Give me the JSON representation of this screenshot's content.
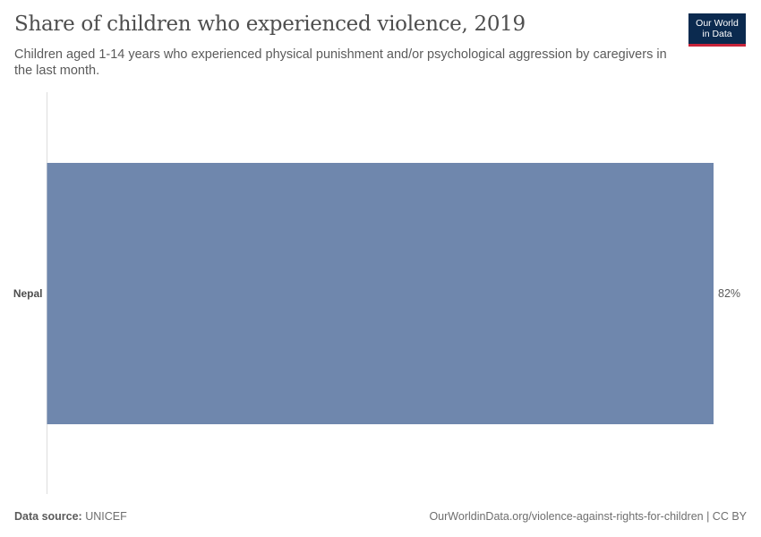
{
  "header": {
    "title": "Share of children who experienced violence, 2019",
    "subtitle": "Children aged 1-14 years who experienced physical punishment and/or psychological aggression by caregivers in the last month."
  },
  "logo": {
    "line1": "Our World",
    "line2": "in Data",
    "bg_color": "#0b2a4f",
    "accent_color": "#c8243a"
  },
  "footer": {
    "source_label": "Data source:",
    "source_value": "UNICEF",
    "link": "OurWorldinData.org/violence-against-rights-for-children | CC BY"
  },
  "chart_data": {
    "type": "bar",
    "orientation": "horizontal",
    "title": "Share of children who experienced violence, 2019",
    "categories": [
      "Nepal"
    ],
    "values": [
      82
    ],
    "value_labels": [
      "82%"
    ],
    "unit": "%",
    "xlim": [
      0,
      82
    ],
    "bar_color": "#6f87ad",
    "grid": false
  }
}
